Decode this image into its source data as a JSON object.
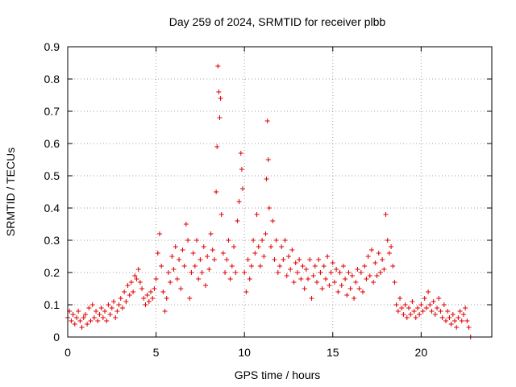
{
  "chart_data": {
    "type": "scatter",
    "title": "Day 259 of 2024, SRMTID for receiver plbb",
    "xlabel": "GPS time / hours",
    "ylabel": "SRMTID / TECUs",
    "xlim": [
      0,
      24
    ],
    "ylim": [
      0,
      0.9
    ],
    "xticks": [
      0,
      5,
      10,
      15,
      20
    ],
    "yticks": [
      0,
      0.1,
      0.2,
      0.3,
      0.4,
      0.5,
      0.6,
      0.7,
      0.8,
      0.9
    ],
    "xtick_labels": [
      "0",
      "5",
      "10",
      "15",
      "20"
    ],
    "ytick_labels": [
      "0",
      "0.1",
      "0.2",
      "0.3",
      "0.4",
      "0.5",
      "0.6",
      "0.7",
      "0.8",
      "0.9"
    ],
    "grid": true,
    "marker": "+",
    "color": "#e00000",
    "series": [
      {
        "name": "SRMTID",
        "points": [
          [
            0.0,
            0.06
          ],
          [
            0.1,
            0.08
          ],
          [
            0.2,
            0.05
          ],
          [
            0.3,
            0.07
          ],
          [
            0.4,
            0.04
          ],
          [
            0.5,
            0.06
          ],
          [
            0.6,
            0.08
          ],
          [
            0.7,
            0.05
          ],
          [
            0.8,
            0.03
          ],
          [
            0.9,
            0.06
          ],
          [
            1.0,
            0.07
          ],
          [
            1.1,
            0.04
          ],
          [
            1.2,
            0.09
          ],
          [
            1.3,
            0.05
          ],
          [
            1.4,
            0.1
          ],
          [
            1.5,
            0.06
          ],
          [
            1.6,
            0.08
          ],
          [
            1.7,
            0.05
          ],
          [
            1.8,
            0.07
          ],
          [
            1.9,
            0.09
          ],
          [
            2.0,
            0.06
          ],
          [
            2.1,
            0.08
          ],
          [
            2.2,
            0.05
          ],
          [
            2.3,
            0.1
          ],
          [
            2.4,
            0.07
          ],
          [
            2.5,
            0.09
          ],
          [
            2.6,
            0.11
          ],
          [
            2.7,
            0.06
          ],
          [
            2.8,
            0.08
          ],
          [
            2.9,
            0.1
          ],
          [
            3.0,
            0.12
          ],
          [
            3.1,
            0.09
          ],
          [
            3.2,
            0.14
          ],
          [
            3.3,
            0.11
          ],
          [
            3.4,
            0.16
          ],
          [
            3.5,
            0.13
          ],
          [
            3.6,
            0.17
          ],
          [
            3.7,
            0.14
          ],
          [
            3.8,
            0.19
          ],
          [
            3.9,
            0.18
          ],
          [
            4.0,
            0.21
          ],
          [
            4.1,
            0.17
          ],
          [
            4.2,
            0.15
          ],
          [
            4.3,
            0.12
          ],
          [
            4.4,
            0.1
          ],
          [
            4.5,
            0.13
          ],
          [
            4.6,
            0.11
          ],
          [
            4.7,
            0.14
          ],
          [
            4.8,
            0.12
          ],
          [
            4.9,
            0.15
          ],
          [
            5.0,
            0.18
          ],
          [
            5.1,
            0.26
          ],
          [
            5.2,
            0.32
          ],
          [
            5.3,
            0.22
          ],
          [
            5.4,
            0.14
          ],
          [
            5.5,
            0.08
          ],
          [
            5.6,
            0.12
          ],
          [
            5.7,
            0.2
          ],
          [
            5.8,
            0.17
          ],
          [
            5.9,
            0.25
          ],
          [
            6.0,
            0.21
          ],
          [
            6.1,
            0.28
          ],
          [
            6.2,
            0.18
          ],
          [
            6.3,
            0.24
          ],
          [
            6.4,
            0.15
          ],
          [
            6.5,
            0.27
          ],
          [
            6.6,
            0.22
          ],
          [
            6.7,
            0.35
          ],
          [
            6.8,
            0.3
          ],
          [
            6.9,
            0.12
          ],
          [
            7.0,
            0.2
          ],
          [
            7.1,
            0.26
          ],
          [
            7.2,
            0.22
          ],
          [
            7.3,
            0.3
          ],
          [
            7.4,
            0.18
          ],
          [
            7.5,
            0.24
          ],
          [
            7.6,
            0.2
          ],
          [
            7.7,
            0.28
          ],
          [
            7.8,
            0.16
          ],
          [
            7.9,
            0.25
          ],
          [
            8.0,
            0.21
          ],
          [
            8.1,
            0.32
          ],
          [
            8.2,
            0.27
          ],
          [
            8.3,
            0.24
          ],
          [
            8.4,
            0.45
          ],
          [
            8.45,
            0.59
          ],
          [
            8.5,
            0.84
          ],
          [
            8.55,
            0.76
          ],
          [
            8.6,
            0.68
          ],
          [
            8.65,
            0.74
          ],
          [
            8.7,
            0.38
          ],
          [
            8.8,
            0.26
          ],
          [
            8.9,
            0.2
          ],
          [
            9.0,
            0.24
          ],
          [
            9.1,
            0.3
          ],
          [
            9.2,
            0.18
          ],
          [
            9.3,
            0.22
          ],
          [
            9.4,
            0.28
          ],
          [
            9.5,
            0.2
          ],
          [
            9.6,
            0.36
          ],
          [
            9.7,
            0.42
          ],
          [
            9.8,
            0.57
          ],
          [
            9.85,
            0.52
          ],
          [
            9.9,
            0.46
          ],
          [
            10.0,
            0.2
          ],
          [
            10.1,
            0.14
          ],
          [
            10.2,
            0.24
          ],
          [
            10.3,
            0.18
          ],
          [
            10.4,
            0.22
          ],
          [
            10.5,
            0.3
          ],
          [
            10.6,
            0.26
          ],
          [
            10.7,
            0.38
          ],
          [
            10.8,
            0.28
          ],
          [
            10.9,
            0.22
          ],
          [
            11.0,
            0.3
          ],
          [
            11.1,
            0.25
          ],
          [
            11.2,
            0.32
          ],
          [
            11.25,
            0.49
          ],
          [
            11.3,
            0.67
          ],
          [
            11.35,
            0.55
          ],
          [
            11.4,
            0.4
          ],
          [
            11.5,
            0.28
          ],
          [
            11.6,
            0.36
          ],
          [
            11.7,
            0.24
          ],
          [
            11.8,
            0.3
          ],
          [
            11.9,
            0.2
          ],
          [
            12.0,
            0.22
          ],
          [
            12.1,
            0.28
          ],
          [
            12.2,
            0.24
          ],
          [
            12.3,
            0.3
          ],
          [
            12.4,
            0.19
          ],
          [
            12.5,
            0.25
          ],
          [
            12.6,
            0.21
          ],
          [
            12.7,
            0.27
          ],
          [
            12.8,
            0.17
          ],
          [
            12.9,
            0.23
          ],
          [
            13.0,
            0.2
          ],
          [
            13.1,
            0.24
          ],
          [
            13.2,
            0.18
          ],
          [
            13.3,
            0.22
          ],
          [
            13.4,
            0.15
          ],
          [
            13.5,
            0.21
          ],
          [
            13.6,
            0.18
          ],
          [
            13.7,
            0.24
          ],
          [
            13.8,
            0.12
          ],
          [
            13.9,
            0.19
          ],
          [
            14.0,
            0.22
          ],
          [
            14.1,
            0.17
          ],
          [
            14.2,
            0.24
          ],
          [
            14.3,
            0.2
          ],
          [
            14.4,
            0.15
          ],
          [
            14.5,
            0.22
          ],
          [
            14.6,
            0.18
          ],
          [
            14.7,
            0.25
          ],
          [
            14.8,
            0.16
          ],
          [
            14.9,
            0.2
          ],
          [
            15.0,
            0.23
          ],
          [
            15.1,
            0.17
          ],
          [
            15.2,
            0.21
          ],
          [
            15.3,
            0.14
          ],
          [
            15.4,
            0.2
          ],
          [
            15.5,
            0.16
          ],
          [
            15.6,
            0.22
          ],
          [
            15.7,
            0.18
          ],
          [
            15.8,
            0.13
          ],
          [
            15.9,
            0.2
          ],
          [
            16.0,
            0.15
          ],
          [
            16.1,
            0.19
          ],
          [
            16.2,
            0.12
          ],
          [
            16.3,
            0.17
          ],
          [
            16.4,
            0.21
          ],
          [
            16.5,
            0.15
          ],
          [
            16.6,
            0.2
          ],
          [
            16.7,
            0.14
          ],
          [
            16.8,
            0.22
          ],
          [
            16.9,
            0.18
          ],
          [
            17.0,
            0.25
          ],
          [
            17.1,
            0.19
          ],
          [
            17.2,
            0.27
          ],
          [
            17.3,
            0.17
          ],
          [
            17.4,
            0.23
          ],
          [
            17.5,
            0.19
          ],
          [
            17.6,
            0.26
          ],
          [
            17.7,
            0.2
          ],
          [
            17.8,
            0.24
          ],
          [
            17.9,
            0.21
          ],
          [
            18.0,
            0.38
          ],
          [
            18.1,
            0.3
          ],
          [
            18.2,
            0.26
          ],
          [
            18.3,
            0.28
          ],
          [
            18.4,
            0.22
          ],
          [
            18.5,
            0.17
          ],
          [
            18.6,
            0.1
          ],
          [
            18.7,
            0.08
          ],
          [
            18.8,
            0.12
          ],
          [
            18.9,
            0.09
          ],
          [
            19.0,
            0.07
          ],
          [
            19.1,
            0.1
          ],
          [
            19.2,
            0.06
          ],
          [
            19.3,
            0.09
          ],
          [
            19.4,
            0.07
          ],
          [
            19.5,
            0.11
          ],
          [
            19.6,
            0.08
          ],
          [
            19.7,
            0.06
          ],
          [
            19.8,
            0.09
          ],
          [
            19.9,
            0.07
          ],
          [
            20.0,
            0.1
          ],
          [
            20.1,
            0.08
          ],
          [
            20.2,
            0.12
          ],
          [
            20.3,
            0.09
          ],
          [
            20.4,
            0.14
          ],
          [
            20.5,
            0.1
          ],
          [
            20.6,
            0.08
          ],
          [
            20.7,
            0.11
          ],
          [
            20.8,
            0.07
          ],
          [
            20.9,
            0.09
          ],
          [
            21.0,
            0.12
          ],
          [
            21.1,
            0.08
          ],
          [
            21.2,
            0.06
          ],
          [
            21.3,
            0.1
          ],
          [
            21.4,
            0.05
          ],
          [
            21.5,
            0.08
          ],
          [
            21.6,
            0.06
          ],
          [
            21.7,
            0.04
          ],
          [
            21.8,
            0.07
          ],
          [
            21.9,
            0.05
          ],
          [
            22.0,
            0.03
          ],
          [
            22.1,
            0.06
          ],
          [
            22.2,
            0.08
          ],
          [
            22.3,
            0.05
          ],
          [
            22.4,
            0.07
          ],
          [
            22.5,
            0.09
          ],
          [
            22.6,
            0.05
          ],
          [
            22.7,
            0.03
          ],
          [
            22.8,
            0.0
          ]
        ]
      }
    ]
  }
}
